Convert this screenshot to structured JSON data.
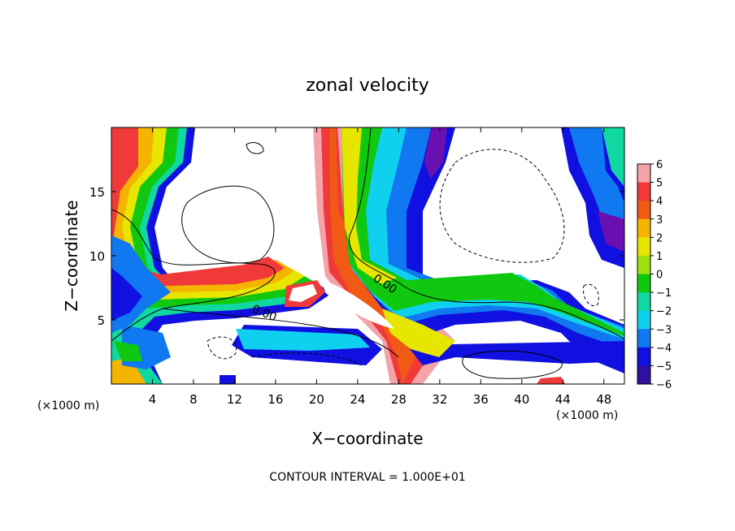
{
  "chart_data": {
    "type": "heatmap",
    "title": "zonal velocity",
    "xlabel": "X−coordinate",
    "ylabel": "Z−coordinate",
    "x_unit_label": "(×1000 m)",
    "y_unit_label": "(×1000 m)",
    "xlim": [
      0,
      50
    ],
    "ylim": [
      0,
      20
    ],
    "x_ticks": [
      4,
      8,
      12,
      16,
      20,
      24,
      28,
      32,
      36,
      40,
      44,
      48
    ],
    "y_ticks": [
      5,
      10,
      15
    ],
    "colorbar": {
      "levels": [
        6,
        5,
        4,
        3,
        2,
        1,
        0,
        -1,
        -2,
        -3,
        -4,
        -5,
        -6
      ],
      "labels": [
        "6",
        "5",
        "4",
        "3",
        "2",
        "1",
        "0",
        "−1",
        "−2",
        "−3",
        "−4",
        "−5",
        "−6"
      ],
      "colors": [
        "#f4a3a8",
        "#f03a3a",
        "#f05a14",
        "#f4b400",
        "#e6e600",
        "#a0e010",
        "#10c810",
        "#10d8a0",
        "#10d0f0",
        "#1078f0",
        "#1010e0",
        "#3010a0",
        "#6a10b0"
      ]
    },
    "contour_label": "0.00",
    "footer": "CONTOUR INTERVAL = 1.000E+01"
  }
}
